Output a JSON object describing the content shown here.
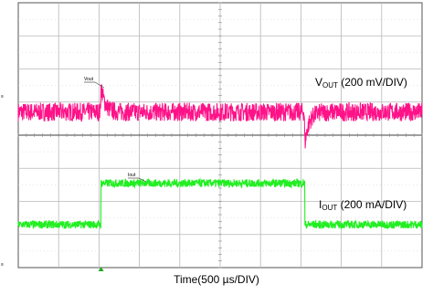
{
  "chart_data": {
    "type": "line",
    "x_label": "Time(500 µs/DIV)",
    "x_divisions": 10,
    "y_divisions": 8,
    "grid": true,
    "series": [
      {
        "name_main": "V",
        "name_sub": "OUT",
        "scale": " (200 mV/DIV)",
        "tag": "Vout",
        "color": "#ff1188",
        "ground_marker": "≡",
        "baseline_div": 4.7,
        "noise_div": 0.28,
        "events": [
          {
            "t_div": 2.05,
            "peak_div": 0.75,
            "type": "overshoot"
          },
          {
            "t_div": 7.1,
            "peak_div": -0.95,
            "type": "undershoot"
          }
        ]
      },
      {
        "name_main": "I",
        "name_sub": "OUT",
        "scale": " (200 mA/DIV)",
        "tag": "Iout",
        "color": "#22ee22",
        "ground_marker": "≡",
        "low_div": 1.3,
        "high_div": 2.55,
        "noise_div": 0.12,
        "step_on_div": 2.05,
        "step_off_div": 7.1
      }
    ]
  }
}
